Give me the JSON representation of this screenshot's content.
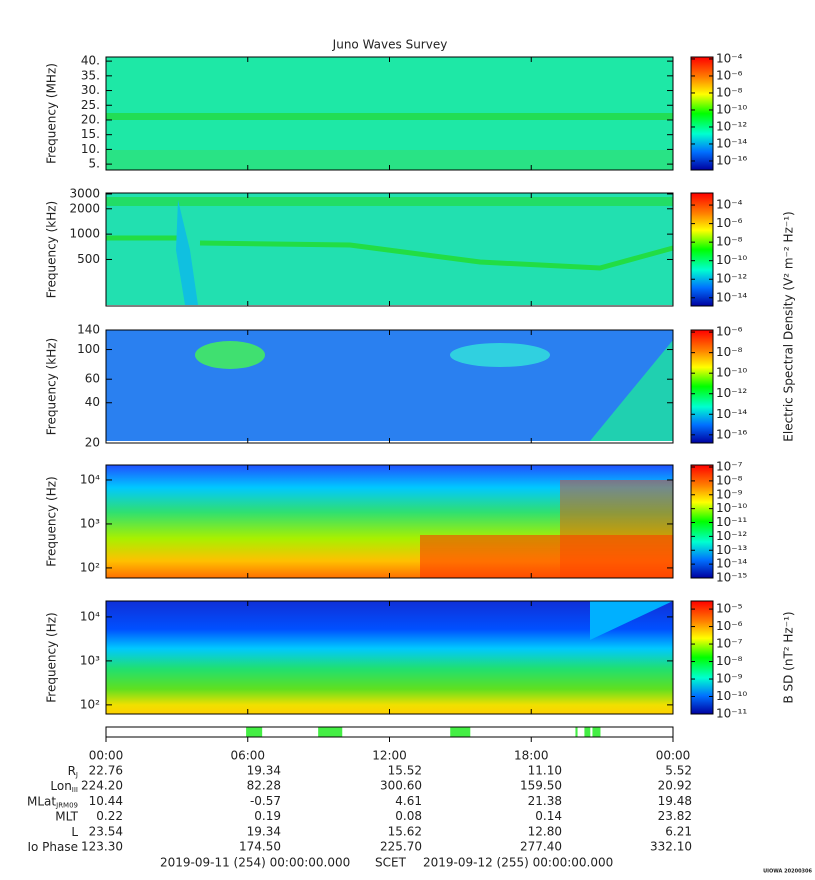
{
  "chart_data": [
    {
      "type": "spectrogram",
      "title": "Juno Waves Survey",
      "ylabel": "Frequency (MHz)",
      "yscale": "linear",
      "ylim": [
        3,
        41.4
      ],
      "yticks": [
        {
          "value": 40,
          "label": "40."
        },
        {
          "value": 35,
          "label": "35."
        },
        {
          "value": 30,
          "label": "30."
        },
        {
          "value": 25,
          "label": "25."
        },
        {
          "value": 20,
          "label": "20."
        },
        {
          "value": 15,
          "label": "15."
        },
        {
          "value": 10,
          "label": "10."
        },
        {
          "value": 5,
          "label": "5."
        }
      ],
      "clim": [
        8.7e-18,
        0.00017
      ],
      "cticks": [
        {
          "value": 0.0001,
          "label": "10⁻⁴"
        },
        {
          "value": 1e-06,
          "label": "10⁻⁶"
        },
        {
          "value": 1e-08,
          "label": "10⁻⁸"
        },
        {
          "value": 1e-10,
          "label": "10⁻¹⁰"
        },
        {
          "value": 1e-12,
          "label": "10⁻¹²"
        },
        {
          "value": 1e-14,
          "label": "10⁻¹⁴"
        },
        {
          "value": 1e-16,
          "label": "10⁻¹⁶"
        }
      ]
    },
    {
      "type": "spectrogram",
      "ylabel": "Frequency (kHz)",
      "yscale": "log",
      "ylim": [
        140,
        3080
      ],
      "yticks": [
        3000,
        2000,
        1000,
        500
      ],
      "clim": [
        1.3e-15,
        0.002
      ],
      "cticks": [
        {
          "value": 0.0001,
          "label": "10⁻⁴"
        },
        {
          "value": 1e-06,
          "label": "10⁻⁶"
        },
        {
          "value": 1e-08,
          "label": "10⁻⁸"
        },
        {
          "value": 1e-10,
          "label": "10⁻¹⁰"
        },
        {
          "value": 1e-12,
          "label": "10⁻¹²"
        },
        {
          "value": 1e-14,
          "label": "10⁻¹⁴"
        }
      ]
    },
    {
      "type": "spectrogram",
      "ylabel": "Frequency (kHz)",
      "yscale": "log",
      "ylim": [
        20,
        140
      ],
      "yticks": [
        140,
        100,
        60,
        40,
        20
      ],
      "clim": [
        1.6e-17,
        1.6e-06
      ],
      "colorbar_label": "Electric Spectral Density (V² m⁻² Hz⁻¹)",
      "cticks": [
        {
          "value": 1e-06,
          "label": "10⁻⁶"
        },
        {
          "value": 1e-08,
          "label": "10⁻⁸"
        },
        {
          "value": 1e-10,
          "label": "10⁻¹⁰"
        },
        {
          "value": 1e-12,
          "label": "10⁻¹²"
        },
        {
          "value": 1e-14,
          "label": "10⁻¹⁴"
        },
        {
          "value": 1e-16,
          "label": "10⁻¹⁶"
        }
      ]
    },
    {
      "type": "spectrogram",
      "ylabel": "Frequency (Hz)",
      "yscale": "log",
      "ylim": [
        59,
        21900
      ],
      "yticks": [
        {
          "value": 10000,
          "label": "10⁴"
        },
        {
          "value": 1000,
          "label": "10³"
        },
        {
          "value": 100,
          "label": "10²"
        }
      ],
      "clim": [
        1e-15,
        1.4e-07
      ],
      "cticks": [
        {
          "value": 1e-07,
          "label": "10⁻⁷"
        },
        {
          "value": 1e-08,
          "label": "10⁻⁸"
        },
        {
          "value": 1e-09,
          "label": "10⁻⁹"
        },
        {
          "value": 1e-10,
          "label": "10⁻¹⁰"
        },
        {
          "value": 1e-11,
          "label": "10⁻¹¹"
        },
        {
          "value": 1e-12,
          "label": "10⁻¹²"
        },
        {
          "value": 1e-13,
          "label": "10⁻¹³"
        },
        {
          "value": 1e-14,
          "label": "10⁻¹⁴"
        },
        {
          "value": 1e-15,
          "label": "10⁻¹⁵"
        }
      ]
    },
    {
      "type": "spectrogram",
      "ylabel": "Frequency (Hz)",
      "yscale": "log",
      "ylim": [
        62,
        23000
      ],
      "yticks": [
        {
          "value": 10000,
          "label": "10⁴"
        },
        {
          "value": 1000,
          "label": "10³"
        },
        {
          "value": 100,
          "label": "10²"
        }
      ],
      "clim": [
        1e-11,
        2.9e-05
      ],
      "colorbar_label": "B SD (nT² Hz⁻¹)",
      "cticks": [
        {
          "value": 1e-05,
          "label": "10⁻⁵"
        },
        {
          "value": 1e-06,
          "label": "10⁻⁶"
        },
        {
          "value": 1e-07,
          "label": "10⁻⁷"
        },
        {
          "value": 1e-08,
          "label": "10⁻⁸"
        },
        {
          "value": 1e-09,
          "label": "10⁻⁹"
        },
        {
          "value": 1e-10,
          "label": "10⁻¹⁰"
        },
        {
          "value": 1e-11,
          "label": "10⁻¹¹"
        }
      ]
    }
  ],
  "status_strip": {
    "xlim": [
      0,
      24
    ],
    "intervals": [
      [
        5.93,
        6.61
      ],
      [
        8.98,
        10.0
      ],
      [
        14.57,
        15.42
      ],
      [
        19.87,
        19.96
      ],
      [
        20.25,
        20.5
      ],
      [
        20.59,
        20.93
      ]
    ],
    "color": "#44ee44"
  },
  "ephemeris": {
    "time_labels": [
      "00:00",
      "06:00",
      "12:00",
      "18:00",
      "00:00"
    ],
    "rows": [
      {
        "label": "R",
        "sub": "J",
        "values": [
          "22.76",
          "19.34",
          "15.52",
          "11.10",
          "5.52"
        ]
      },
      {
        "label": "Lon",
        "sub": "III",
        "values": [
          "224.20",
          "82.28",
          "300.60",
          "159.50",
          "20.92"
        ]
      },
      {
        "label": "MLat",
        "sub": "JRM09",
        "values": [
          "10.44",
          "-0.57",
          "4.61",
          "21.38",
          "19.48"
        ]
      },
      {
        "label": "MLT",
        "values": [
          "0.22",
          "0.19",
          "0.08",
          "0.14",
          "23.82"
        ]
      },
      {
        "label": "L",
        "values": [
          "23.54",
          "19.34",
          "15.62",
          "12.80",
          "6.21"
        ]
      },
      {
        "label": "Io Phase",
        "values": [
          "123.30",
          "174.50",
          "225.70",
          "277.40",
          "332.10"
        ]
      }
    ]
  },
  "footer": {
    "start": "2019-09-11 (254) 00:00:00.000",
    "scet": "SCET",
    "end": "2019-09-12 (255) 00:00:00.000",
    "stamp": "UIOWA 20200306"
  }
}
